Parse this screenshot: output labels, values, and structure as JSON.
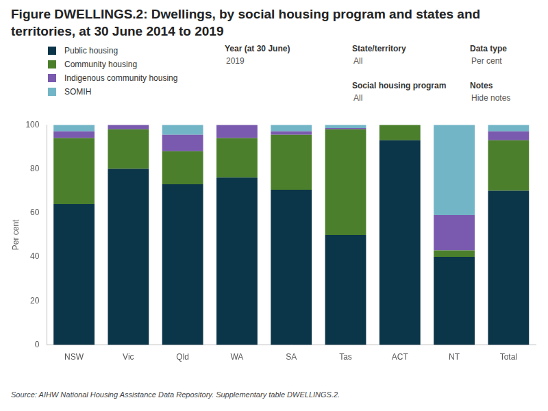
{
  "chart_data": {
    "type": "bar",
    "title": "Figure DWELLINGS.2: Dwellings, by social housing program and states and territories, at 30 June 2014 to 2019",
    "y_label": "Per cent",
    "categories": [
      "NSW",
      "Vic",
      "Qld",
      "WA",
      "SA",
      "Tas",
      "ACT",
      "NT",
      "Total"
    ],
    "series": [
      {
        "name": "Public housing",
        "color": "#0b3548",
        "values": [
          64,
          80,
          73,
          76,
          70.5,
          50,
          93,
          40,
          70
        ]
      },
      {
        "name": "Community housing",
        "color": "#4b7f2c",
        "values": [
          30,
          18,
          15,
          18,
          25,
          48,
          7,
          3,
          23
        ]
      },
      {
        "name": "Indigenous community housing",
        "color": "#7a5aae",
        "values": [
          3,
          2,
          7.5,
          6,
          1.5,
          0.5,
          0,
          16,
          4
        ]
      },
      {
        "name": "SOMIH",
        "color": "#72b5c6",
        "values": [
          3,
          0,
          4.5,
          0,
          3,
          1.5,
          0,
          41,
          3
        ]
      }
    ],
    "stacked": true,
    "ylim": [
      0,
      100
    ],
    "yticks": [
      0,
      20,
      40,
      60,
      80,
      100
    ],
    "grid": false,
    "legend": "top-left",
    "filters": [
      {
        "label": "Year (at 30 June)",
        "value": "2019"
      },
      {
        "label": "State/territory",
        "value": "All"
      },
      {
        "label": "Data type",
        "value": "Per cent"
      },
      {
        "label": "Social housing program",
        "value": "All"
      },
      {
        "label": "Notes",
        "value": "Hide notes"
      }
    ],
    "source": "Source: AIHW National Housing Assistance Data Repository. Supplementary table DWELLINGS.2."
  }
}
